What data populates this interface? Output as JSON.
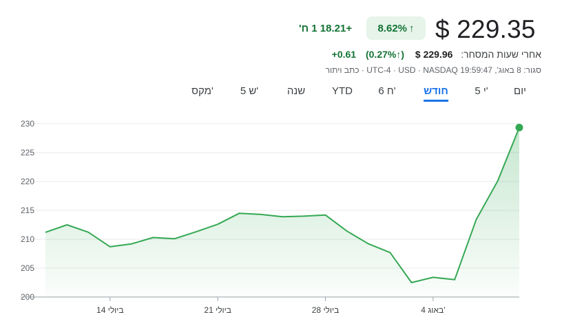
{
  "header": {
    "price": "$ 229.35",
    "change_pct": "8.62%",
    "change_arrow": "↑",
    "change_abs": "+18.21 1 ח'",
    "after_hours_label": "אחרי שעות המסחר:",
    "after_hours_price": "$ 229.96",
    "after_hours_pct": "(0.27%↑)",
    "after_hours_abs": "+0.61",
    "meta": "סגור: 8 באוג', 19:59:47 UTC-4 · USD · NASDAQ · כתב ויתור"
  },
  "tabs": [
    {
      "label": "יום"
    },
    {
      "label": "5 י'"
    },
    {
      "label": "חודש"
    },
    {
      "label": "6 ח'"
    },
    {
      "label": "YTD"
    },
    {
      "label": "שנה"
    },
    {
      "label": "5 ש'"
    },
    {
      "label": "מקס'"
    }
  ],
  "active_tab": "חודש",
  "colors": {
    "line": "#34a853",
    "positive": "#137333",
    "badge_bg": "#e6f4ea",
    "active_tab": "#1a73e8"
  },
  "chart_data": {
    "type": "area",
    "xlabel": "",
    "ylabel": "",
    "ylim": [
      200,
      230
    ],
    "yticks": [
      200,
      205,
      210,
      215,
      220,
      225,
      230
    ],
    "x_tick_labels": [
      "14 ביולי",
      "21 ביולי",
      "28 ביולי",
      "4 באוג'"
    ],
    "x_tick_index": [
      3,
      8,
      13,
      18
    ],
    "grid": true,
    "series": [
      {
        "values": [
          211.2,
          212.5,
          211.2,
          208.7,
          209.2,
          210.3,
          210.1,
          211.3,
          212.6,
          214.5,
          214.3,
          213.9,
          214.0,
          214.2,
          211.4,
          209.2,
          207.7,
          202.5,
          203.4,
          203.0,
          213.4,
          220.1,
          229.35
        ]
      }
    ]
  }
}
